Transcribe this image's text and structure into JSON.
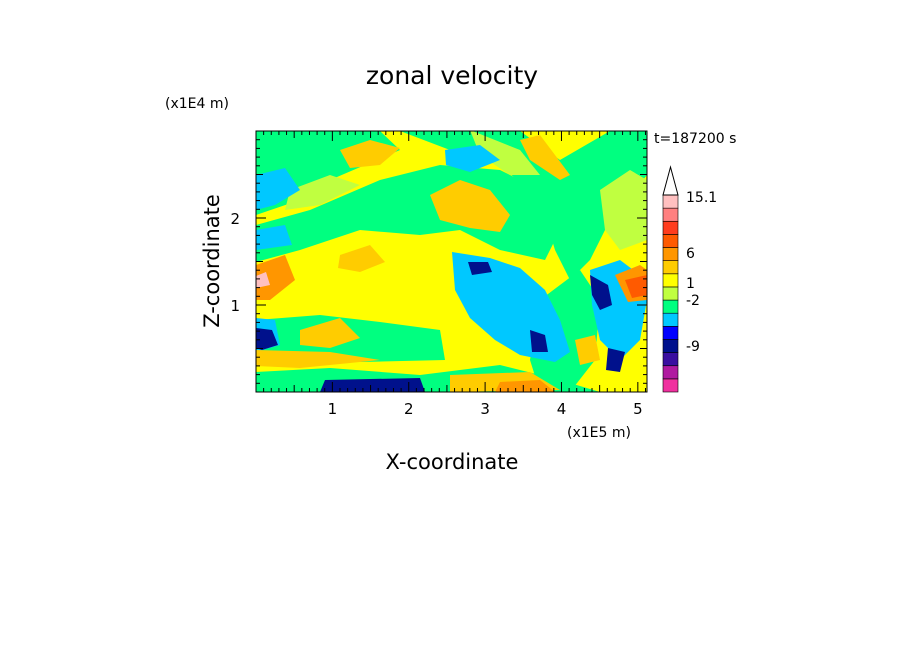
{
  "chart_data": {
    "type": "heatmap",
    "title": "zonal velocity",
    "xlabel": "X-coordinate",
    "ylabel": "Z-coordinate",
    "x_unit": "(x1E5 m)",
    "y_unit": "(x1E4 m)",
    "time_label": "t=187200 s",
    "xlim": [
      0,
      5.12
    ],
    "ylim": [
      0,
      3.0
    ],
    "x_ticks": [
      "1",
      "2",
      "3",
      "4",
      "5"
    ],
    "y_ticks": [
      "1",
      "2"
    ],
    "x_tick_values": [
      1,
      2,
      3,
      4,
      5
    ],
    "y_tick_values": [
      1,
      2
    ],
    "colorbar": {
      "labels": [
        "15.1",
        "6",
        "1",
        "-2",
        "-9"
      ],
      "colors": [
        "#f0309f",
        "#b01aa0",
        "#3a0fa0",
        "#00118c",
        "#0000ff",
        "#00c8ff",
        "#00ff80",
        "#c0ff40",
        "#ffff00",
        "#ffcc00",
        "#ff9600",
        "#ff5a00",
        "#ff3c1e",
        "#ff8080",
        "#ffc0c0"
      ]
    }
  }
}
